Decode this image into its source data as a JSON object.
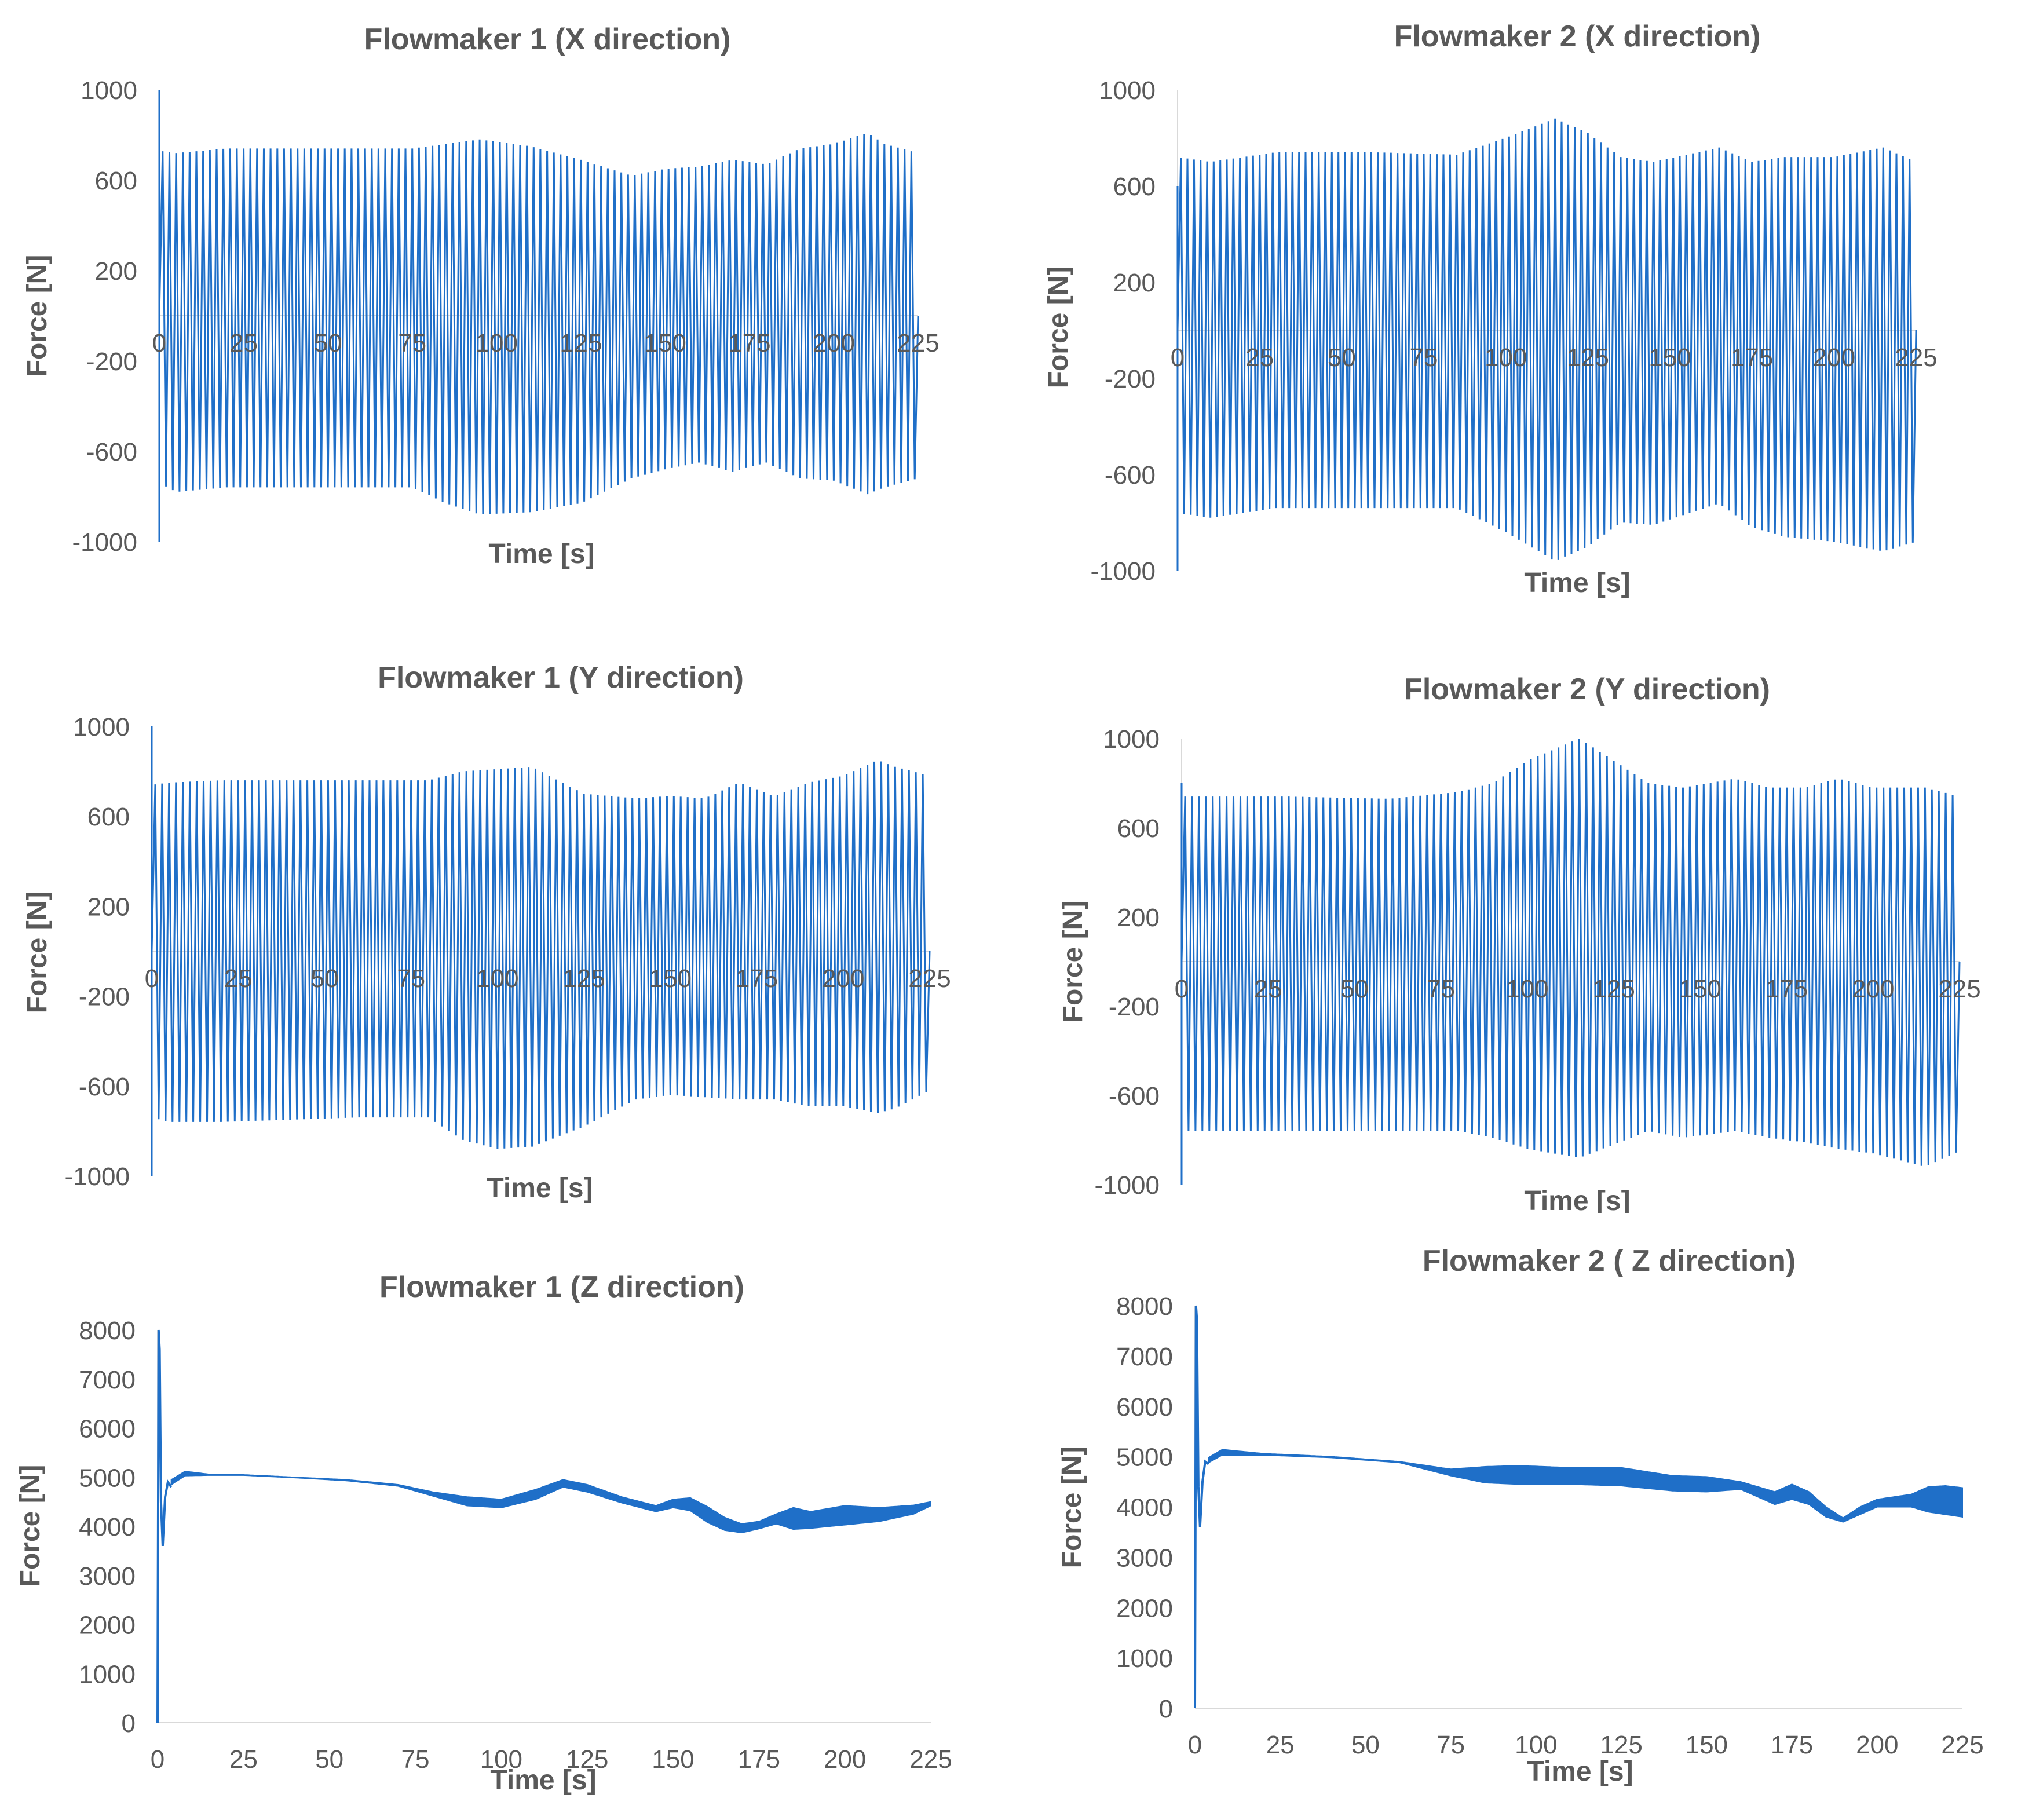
{
  "series_color": "#1f6fc8",
  "text_color": "#595959",
  "chart_data": [
    {
      "id": "fm1x",
      "type": "line",
      "title": "Flowmaker 1 (X direction)",
      "xlabel": "Time [s]",
      "ylabel": "Force [N]",
      "xlim": [
        0,
        225
      ],
      "ylim": [
        -1000,
        1000
      ],
      "xticks": [
        "0",
        "25",
        "50",
        "75",
        "100",
        "125",
        "150",
        "175",
        "200",
        "225"
      ],
      "yticks": [
        "1000",
        "600",
        "200",
        "-200",
        "-600",
        "-1000"
      ],
      "x_axis_at_zero": true,
      "oscillation_period_s": 2.0,
      "start_spike": 1000,
      "upper_envelope": {
        "t": [
          0,
          5,
          20,
          60,
          75,
          85,
          95,
          110,
          125,
          140,
          150,
          160,
          170,
          180,
          190,
          200,
          210,
          215,
          225
        ],
        "f": [
          730,
          720,
          740,
          740,
          740,
          760,
          780,
          750,
          690,
          620,
          650,
          660,
          690,
          670,
          740,
          760,
          810,
          760,
          720
        ]
      },
      "lower_envelope": {
        "t": [
          0,
          5,
          20,
          60,
          75,
          85,
          95,
          110,
          125,
          140,
          150,
          160,
          170,
          180,
          190,
          200,
          210,
          215,
          225
        ],
        "f": [
          -740,
          -780,
          -760,
          -760,
          -760,
          -830,
          -880,
          -870,
          -830,
          -720,
          -680,
          -650,
          -690,
          -650,
          -720,
          -730,
          -790,
          -760,
          -720
        ]
      }
    },
    {
      "id": "fm2x",
      "type": "line",
      "title": "Flowmaker 2 (X direction)",
      "xlabel": "Time [s]",
      "ylabel": "Force [N]",
      "xlim": [
        0,
        225
      ],
      "ylim": [
        -1000,
        1000
      ],
      "xticks": [
        "0",
        "25",
        "50",
        "75",
        "100",
        "125",
        "150",
        "175",
        "200",
        "225"
      ],
      "yticks": [
        "1000",
        "600",
        "200",
        "-200",
        "-600",
        "-1000"
      ],
      "x_axis_at_zero": true,
      "oscillation_period_s": 2.0,
      "start_spike": 600,
      "upper_envelope": {
        "t": [
          0,
          10,
          30,
          60,
          85,
          100,
          115,
          125,
          135,
          145,
          165,
          175,
          185,
          200,
          215,
          225
        ],
        "f": [
          720,
          700,
          740,
          740,
          730,
          800,
          880,
          820,
          720,
          700,
          760,
          700,
          720,
          720,
          760,
          700
        ]
      },
      "lower_envelope": {
        "t": [
          0,
          10,
          30,
          60,
          85,
          100,
          115,
          125,
          135,
          145,
          165,
          175,
          185,
          200,
          215,
          225
        ],
        "f": [
          -760,
          -780,
          -740,
          -740,
          -740,
          -840,
          -960,
          -900,
          -800,
          -810,
          -720,
          -820,
          -860,
          -880,
          -920,
          -880
        ]
      }
    },
    {
      "id": "fm1y",
      "type": "line",
      "title": "Flowmaker 1 (Y direction)",
      "xlabel": "Time [s]",
      "ylabel": "Force [N]",
      "xlim": [
        0,
        225
      ],
      "ylim": [
        -1000,
        1000
      ],
      "xticks": [
        "0",
        "25",
        "50",
        "75",
        "100",
        "125",
        "150",
        "175",
        "200",
        "225"
      ],
      "yticks": [
        "1000",
        "600",
        "200",
        "-200",
        "-600",
        "-1000"
      ],
      "x_axis_at_zero": true,
      "oscillation_period_s": 2.0,
      "start_spike": 1000,
      "upper_envelope": {
        "t": [
          0,
          5,
          20,
          60,
          80,
          90,
          100,
          110,
          125,
          140,
          150,
          160,
          170,
          180,
          190,
          200,
          210,
          215,
          225
        ],
        "f": [
          740,
          750,
          760,
          760,
          760,
          800,
          810,
          820,
          700,
          680,
          690,
          680,
          750,
          690,
          750,
          780,
          850,
          820,
          780
        ]
      },
      "lower_envelope": {
        "t": [
          0,
          5,
          20,
          60,
          80,
          90,
          100,
          110,
          125,
          140,
          150,
          160,
          170,
          180,
          190,
          200,
          210,
          215,
          225
        ],
        "f": [
          -740,
          -760,
          -760,
          -740,
          -740,
          -840,
          -880,
          -870,
          -780,
          -660,
          -640,
          -650,
          -660,
          -660,
          -690,
          -690,
          -720,
          -700,
          -620
        ]
      }
    },
    {
      "id": "fm2y",
      "type": "line",
      "title": "Flowmaker 2 (Y direction)",
      "xlabel": "Time [s]",
      "ylabel": "Force [N]",
      "xlim": [
        0,
        225
      ],
      "ylim": [
        -1000,
        1000
      ],
      "xticks": [
        "0",
        "25",
        "50",
        "75",
        "100",
        "125",
        "150",
        "175",
        "200",
        "225"
      ],
      "yticks": [
        "1000",
        "600",
        "200",
        "-200",
        "-600",
        "-1000"
      ],
      "x_axis_at_zero": true,
      "oscillation_period_s": 2.0,
      "start_spike": 800,
      "upper_envelope": {
        "t": [
          0,
          10,
          30,
          60,
          80,
          90,
          100,
          115,
          125,
          135,
          145,
          160,
          170,
          180,
          190,
          200,
          215,
          225
        ],
        "f": [
          740,
          740,
          740,
          730,
          760,
          800,
          900,
          1000,
          900,
          800,
          780,
          820,
          780,
          780,
          820,
          780,
          780,
          740
        ]
      },
      "lower_envelope": {
        "t": [
          0,
          10,
          30,
          60,
          80,
          90,
          100,
          115,
          125,
          135,
          145,
          160,
          170,
          180,
          190,
          200,
          215,
          225
        ],
        "f": [
          -760,
          -760,
          -760,
          -760,
          -760,
          -790,
          -840,
          -880,
          -820,
          -760,
          -790,
          -760,
          -790,
          -810,
          -840,
          -860,
          -920,
          -850
        ]
      }
    },
    {
      "id": "fm1z",
      "type": "area",
      "title": "Flowmaker 1 (Z direction)",
      "xlabel": "Time [s]",
      "ylabel": "Force [N]",
      "xlim": [
        0,
        225
      ],
      "ylim": [
        0,
        8000
      ],
      "xticks": [
        "0",
        "25",
        "50",
        "75",
        "100",
        "125",
        "150",
        "175",
        "200",
        "225"
      ],
      "yticks": [
        "8000",
        "7000",
        "6000",
        "5000",
        "4000",
        "3000",
        "2000",
        "1000",
        "0"
      ],
      "x_axis_at_zero": false,
      "start_transient": {
        "t": [
          0,
          0.3,
          0.6,
          1,
          1.5,
          2.2,
          3,
          4
        ],
        "f": [
          0,
          8000,
          7600,
          4500,
          3600,
          4600,
          4900,
          4800
        ]
      },
      "upper_envelope": {
        "t": [
          4,
          8,
          15,
          25,
          40,
          55,
          70,
          80,
          90,
          100,
          110,
          118,
          125,
          135,
          145,
          150,
          155,
          160,
          165,
          170,
          175,
          180,
          185,
          190,
          200,
          210,
          220,
          225
        ],
        "f": [
          4950,
          5120,
          5060,
          5050,
          5000,
          4950,
          4850,
          4700,
          4600,
          4550,
          4750,
          4950,
          4850,
          4600,
          4420,
          4550,
          4580,
          4400,
          4180,
          4050,
          4100,
          4250,
          4380,
          4300,
          4420,
          4380,
          4430,
          4500
        ]
      },
      "lower_envelope": {
        "t": [
          4,
          8,
          15,
          25,
          40,
          55,
          70,
          80,
          90,
          100,
          110,
          118,
          125,
          135,
          145,
          150,
          155,
          160,
          165,
          170,
          175,
          180,
          185,
          190,
          200,
          210,
          220,
          225
        ],
        "f": [
          4850,
          5030,
          5040,
          5040,
          4990,
          4930,
          4820,
          4620,
          4420,
          4380,
          4550,
          4800,
          4700,
          4480,
          4300,
          4380,
          4320,
          4080,
          3920,
          3870,
          3950,
          4050,
          3940,
          3960,
          4030,
          4100,
          4250,
          4420
        ]
      }
    },
    {
      "id": "fm2z",
      "type": "area",
      "title": "Flowmaker 2 ( Z direction)",
      "xlabel": "Time [s]",
      "ylabel": "Force [N]",
      "xlim": [
        0,
        225
      ],
      "ylim": [
        0,
        8000
      ],
      "xticks": [
        "0",
        "25",
        "50",
        "75",
        "100",
        "125",
        "150",
        "175",
        "200",
        "225"
      ],
      "yticks": [
        "8000",
        "7000",
        "6000",
        "5000",
        "4000",
        "3000",
        "2000",
        "1000",
        "0"
      ],
      "x_axis_at_zero": false,
      "start_transient": {
        "t": [
          0,
          0.3,
          0.6,
          1,
          1.5,
          2.2,
          3,
          4
        ],
        "f": [
          0,
          8000,
          7700,
          4400,
          3600,
          4500,
          4900,
          4850
        ]
      },
      "upper_envelope": {
        "t": [
          4,
          8,
          20,
          40,
          60,
          75,
          85,
          95,
          110,
          125,
          140,
          150,
          160,
          165,
          170,
          175,
          180,
          185,
          190,
          195,
          200,
          210,
          215,
          220,
          225
        ],
        "f": [
          4980,
          5140,
          5060,
          5000,
          4900,
          4750,
          4800,
          4820,
          4780,
          4780,
          4620,
          4600,
          4500,
          4400,
          4300,
          4450,
          4300,
          4000,
          3780,
          4000,
          4150,
          4250,
          4400,
          4420,
          4380
        ]
      },
      "lower_envelope": {
        "t": [
          4,
          8,
          20,
          40,
          60,
          75,
          85,
          95,
          110,
          125,
          140,
          150,
          160,
          165,
          170,
          175,
          180,
          185,
          190,
          195,
          200,
          210,
          215,
          220,
          225
        ],
        "f": [
          4880,
          5030,
          5030,
          4980,
          4880,
          4620,
          4480,
          4450,
          4450,
          4420,
          4320,
          4300,
          4350,
          4200,
          4050,
          4150,
          4050,
          3800,
          3700,
          3850,
          4000,
          4000,
          3900,
          3850,
          3800
        ]
      }
    }
  ]
}
